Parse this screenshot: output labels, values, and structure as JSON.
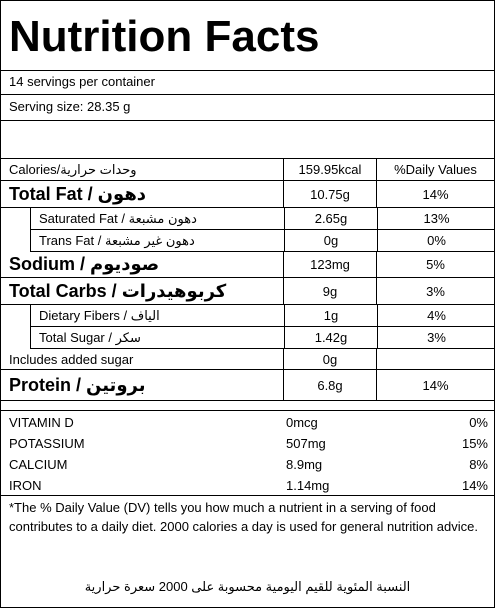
{
  "header": {
    "title": "Nutrition Facts",
    "servings": "14 servings per container",
    "serving_size": "Serving size: 28.35 g"
  },
  "table": {
    "header": {
      "label": "Calories/وحدات حرارية",
      "value": "159.95kcal",
      "dv": "%Daily Values"
    },
    "rows": [
      {
        "label": "Total Fat / دهون",
        "value": "10.75g",
        "dv": "14%"
      },
      {
        "label": "Saturated Fat / دهون مشبعة",
        "value": "2.65g",
        "dv": "13%"
      },
      {
        "label": "Trans Fat / دهون غير مشبعة",
        "value": "0g",
        "dv": "0%"
      },
      {
        "label": "Sodium / صوديوم",
        "value": "123mg",
        "dv": "5%"
      },
      {
        "label": "Total Carbs / كربوهيدرات",
        "value": "9g",
        "dv": "3%"
      },
      {
        "label": "Dietary Fibers / الياف",
        "value": "1g",
        "dv": "4%"
      },
      {
        "label": "Total Sugar / سكر",
        "value": "1.42g",
        "dv": "3%"
      },
      {
        "label": "Includes added sugar",
        "value": "0g"
      },
      {
        "label": "Protein / بروتين",
        "value": "6.8g",
        "dv": "14%"
      }
    ]
  },
  "vitamins": [
    {
      "label": "VITAMIN D",
      "value": "0mcg",
      "dv": "0%"
    },
    {
      "label": "POTASSIUM",
      "value": "507mg",
      "dv": "15%"
    },
    {
      "label": "CALCIUM",
      "value": "8.9mg",
      "dv": "8%"
    },
    {
      "label": "IRON",
      "value": "1.14mg",
      "dv": "14%"
    }
  ],
  "footnote": "*The % Daily Value (DV) tells you how much a nutrient in a serving of food contributes to a daily diet. 2000 calories a day is used for general nutrition advice.",
  "footnote_arabic": "النسبة المئوية للقيم اليومية محسوبة على 2000 سعرة حرارية"
}
